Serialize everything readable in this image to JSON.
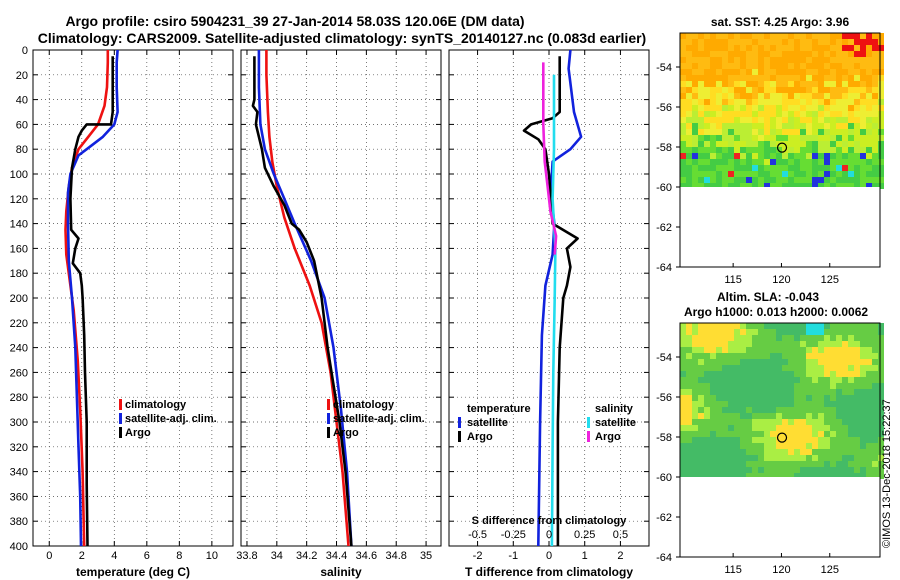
{
  "title_line1": "Argo profile: csiro 5904231_39 27-Jan-2014 58.03S 120.06E (DM data)",
  "title_line2": "Climatology: CARS2009. Satellite-adjusted climatology: synTS_20140127.nc (0.083d earlier)",
  "credit": "©IMOS 13-Dec-2018 15:22:37",
  "colors": {
    "climatology": "#ee1111",
    "satellite": "#1122dd",
    "argo": "#000000",
    "s_satellite": "#22ddee",
    "s_argo": "#ee22dd"
  },
  "chart_data": [
    {
      "id": "temperature",
      "type": "line",
      "xlabel": "temperature (deg C)",
      "ylim": [
        400,
        0
      ],
      "xlim": [
        -1,
        11.3
      ],
      "xticks": [
        0,
        2,
        4,
        6,
        8,
        10
      ],
      "xtick_labels": [
        "0",
        "2",
        "4",
        "6",
        "8",
        "10"
      ],
      "yticks": [
        0,
        20,
        40,
        60,
        80,
        100,
        120,
        140,
        160,
        180,
        200,
        220,
        240,
        260,
        280,
        300,
        320,
        340,
        360,
        380,
        400
      ],
      "grid": true,
      "legend": {
        "position": "bottom-right",
        "entries": [
          {
            "label": "climatology",
            "series": "climatology"
          },
          {
            "label": "satellite-adj. clim.",
            "series": "satellite"
          },
          {
            "label": "Argo",
            "series": "argo"
          }
        ]
      },
      "series": [
        {
          "name": "climatology",
          "points": [
            [
              3.6,
              0
            ],
            [
              3.6,
              10
            ],
            [
              3.55,
              30
            ],
            [
              3.4,
              45
            ],
            [
              3.0,
              60
            ],
            [
              2.4,
              70
            ],
            [
              1.8,
              80
            ],
            [
              1.4,
              95
            ],
            [
              1.2,
              110
            ],
            [
              1.05,
              130
            ],
            [
              1.0,
              145
            ],
            [
              1.05,
              165
            ],
            [
              1.25,
              185
            ],
            [
              1.5,
              210
            ],
            [
              1.75,
              250
            ],
            [
              1.9,
              290
            ],
            [
              2.05,
              340
            ],
            [
              2.15,
              400
            ]
          ]
        },
        {
          "name": "satellite",
          "points": [
            [
              4.2,
              0
            ],
            [
              4.15,
              10
            ],
            [
              4.15,
              30
            ],
            [
              4.2,
              50
            ],
            [
              4.0,
              60
            ],
            [
              3.3,
              70
            ],
            [
              2.3,
              80
            ],
            [
              1.8,
              85
            ],
            [
              1.3,
              100
            ],
            [
              1.15,
              115
            ],
            [
              1.15,
              140
            ],
            [
              1.2,
              170
            ],
            [
              1.4,
              200
            ],
            [
              1.6,
              240
            ],
            [
              1.7,
              280
            ],
            [
              1.8,
              320
            ],
            [
              1.9,
              360
            ],
            [
              1.95,
              400
            ]
          ]
        },
        {
          "name": "argo",
          "points": [
            [
              3.9,
              5
            ],
            [
              3.9,
              10
            ],
            [
              3.9,
              50
            ],
            [
              3.8,
              60
            ],
            [
              2.3,
              60
            ],
            [
              2.0,
              65
            ],
            [
              1.8,
              70
            ],
            [
              1.6,
              80
            ],
            [
              1.4,
              95
            ],
            [
              1.3,
              120
            ],
            [
              1.35,
              145
            ],
            [
              1.8,
              152
            ],
            [
              1.6,
              160
            ],
            [
              1.45,
              172
            ],
            [
              1.9,
              180
            ],
            [
              2.0,
              190
            ],
            [
              2.05,
              200
            ],
            [
              2.15,
              230
            ],
            [
              2.2,
              260
            ],
            [
              2.3,
              300
            ],
            [
              2.3,
              350
            ],
            [
              2.35,
              400
            ]
          ]
        }
      ]
    },
    {
      "id": "salinity",
      "type": "line",
      "xlabel": "salinity",
      "ylim": [
        400,
        0
      ],
      "xlim": [
        33.76,
        35.1
      ],
      "xticks": [
        33.8,
        34.0,
        34.2,
        34.4,
        34.6,
        34.8,
        35.0
      ],
      "xtick_labels": [
        "33.8",
        "34",
        "34.2",
        "34.4",
        "34.6",
        "34.8",
        "35"
      ],
      "grid": true,
      "legend": {
        "position": "bottom-right",
        "entries": [
          {
            "label": "climatology",
            "series": "climatology"
          },
          {
            "label": "satellite-adj. clim.",
            "series": "satellite"
          },
          {
            "label": "Argo",
            "series": "argo"
          }
        ]
      },
      "series": [
        {
          "name": "climatology",
          "points": [
            [
              33.93,
              0
            ],
            [
              33.93,
              20
            ],
            [
              33.94,
              50
            ],
            [
              33.95,
              70
            ],
            [
              33.97,
              90
            ],
            [
              34.0,
              110
            ],
            [
              34.05,
              135
            ],
            [
              34.12,
              160
            ],
            [
              34.22,
              190
            ],
            [
              34.3,
              220
            ],
            [
              34.36,
              260
            ],
            [
              34.4,
              300
            ],
            [
              34.44,
              340
            ],
            [
              34.48,
              400
            ]
          ]
        },
        {
          "name": "satellite",
          "points": [
            [
              33.88,
              0
            ],
            [
              33.88,
              30
            ],
            [
              33.89,
              60
            ],
            [
              33.92,
              80
            ],
            [
              33.98,
              100
            ],
            [
              34.05,
              120
            ],
            [
              34.12,
              140
            ],
            [
              34.23,
              170
            ],
            [
              34.32,
              200
            ],
            [
              34.38,
              240
            ],
            [
              34.43,
              290
            ],
            [
              34.47,
              340
            ],
            [
              34.5,
              400
            ]
          ]
        },
        {
          "name": "argo",
          "points": [
            [
              33.85,
              5
            ],
            [
              33.85,
              40
            ],
            [
              33.84,
              45
            ],
            [
              33.87,
              50
            ],
            [
              33.86,
              60
            ],
            [
              33.9,
              80
            ],
            [
              33.92,
              95
            ],
            [
              33.98,
              110
            ],
            [
              34.05,
              125
            ],
            [
              34.1,
              140
            ],
            [
              34.15,
              145
            ],
            [
              34.2,
              155
            ],
            [
              34.25,
              170
            ],
            [
              34.3,
              200
            ],
            [
              34.34,
              240
            ],
            [
              34.38,
              270
            ],
            [
              34.42,
              300
            ],
            [
              34.46,
              340
            ],
            [
              34.5,
              400
            ]
          ]
        }
      ]
    },
    {
      "id": "difference",
      "type": "line",
      "xlabel": "T difference from climatology",
      "x2label": "S difference from climatology",
      "ylim": [
        400,
        0
      ],
      "xlim": [
        -2.8,
        2.8
      ],
      "xticks": [
        -2,
        -1,
        0,
        1,
        2
      ],
      "xtick_labels": [
        "-2",
        "-1",
        "0",
        "1",
        "2"
      ],
      "x2ticks": [
        -0.5,
        -0.25,
        0,
        0.25,
        0.5
      ],
      "x2tick_labels": [
        "-0.5",
        "-0.25",
        "0",
        "0.25",
        "0.5"
      ],
      "grid": true,
      "legend": {
        "temperature_title": "temperature",
        "salinity_title": "salinity",
        "temperature_entries": [
          {
            "label": "satellite",
            "series": "t_satellite"
          },
          {
            "label": "Argo",
            "series": "t_argo"
          }
        ],
        "salinity_entries": [
          {
            "label": "satellite",
            "series": "s_satellite"
          },
          {
            "label": "Argo",
            "series": "s_argo"
          }
        ]
      },
      "series": [
        {
          "name": "t_satellite",
          "points": [
            [
              0.6,
              0
            ],
            [
              0.55,
              15
            ],
            [
              0.7,
              50
            ],
            [
              0.9,
              70
            ],
            [
              0.6,
              80
            ],
            [
              0.1,
              90
            ],
            [
              0.05,
              115
            ],
            [
              0.15,
              140
            ],
            [
              0.1,
              165
            ],
            [
              -0.1,
              190
            ],
            [
              -0.2,
              230
            ],
            [
              -0.25,
              300
            ],
            [
              -0.3,
              400
            ]
          ]
        },
        {
          "name": "t_argo",
          "points": [
            [
              0.3,
              5
            ],
            [
              0.3,
              50
            ],
            [
              0.1,
              55
            ],
            [
              -0.5,
              60
            ],
            [
              -0.7,
              65
            ],
            [
              -0.3,
              72
            ],
            [
              -0.1,
              80
            ],
            [
              0.0,
              100
            ],
            [
              0.1,
              140
            ],
            [
              0.8,
              152
            ],
            [
              0.5,
              160
            ],
            [
              0.6,
              175
            ],
            [
              0.5,
              190
            ],
            [
              0.4,
              200
            ],
            [
              0.3,
              240
            ],
            [
              0.25,
              300
            ],
            [
              0.25,
              400
            ]
          ]
        },
        {
          "name": "s_satellite",
          "points": [
            [
              0.035,
              20
            ],
            [
              0.035,
              80
            ],
            [
              0.025,
              120
            ],
            [
              0.045,
              160
            ],
            [
              0.04,
              200
            ],
            [
              0.03,
              260
            ],
            [
              0.025,
              320
            ],
            [
              0.02,
              400
            ]
          ]
        },
        {
          "name": "s_argo",
          "points": [
            [
              -0.04,
              10
            ],
            [
              -0.04,
              60
            ],
            [
              -0.03,
              90
            ],
            [
              -0.01,
              110
            ],
            [
              0.01,
              130
            ],
            [
              0.05,
              150
            ],
            [
              0.04,
              165
            ]
          ]
        }
      ]
    },
    {
      "id": "sst_map",
      "type": "heatmap",
      "title": "sat. SST: 4.25 Argo: 3.96",
      "xticks": [
        115,
        120,
        125
      ],
      "xtick_labels": [
        "115",
        "120",
        "125"
      ],
      "yticks": [
        -54,
        -56,
        -58,
        -60,
        -62,
        -64
      ],
      "ytick_labels": [
        "-54",
        "-56",
        "-58",
        "-60",
        "-62",
        "-64"
      ],
      "marker": {
        "lon": 120.06,
        "lat": -58.03
      }
    },
    {
      "id": "sla_map",
      "type": "heatmap",
      "title_line1": "Altim. SLA: -0.043",
      "title_line2": "Argo h1000: 0.013 h2000: 0.0062",
      "xticks": [
        115,
        120,
        125
      ],
      "xtick_labels": [
        "115",
        "120",
        "125"
      ],
      "yticks": [
        -54,
        -56,
        -58,
        -60,
        -62,
        -64
      ],
      "ytick_labels": [
        "-54",
        "-56",
        "-58",
        "-60",
        "-62",
        "-64"
      ],
      "marker": {
        "lon": 120.06,
        "lat": -58.03
      }
    }
  ]
}
